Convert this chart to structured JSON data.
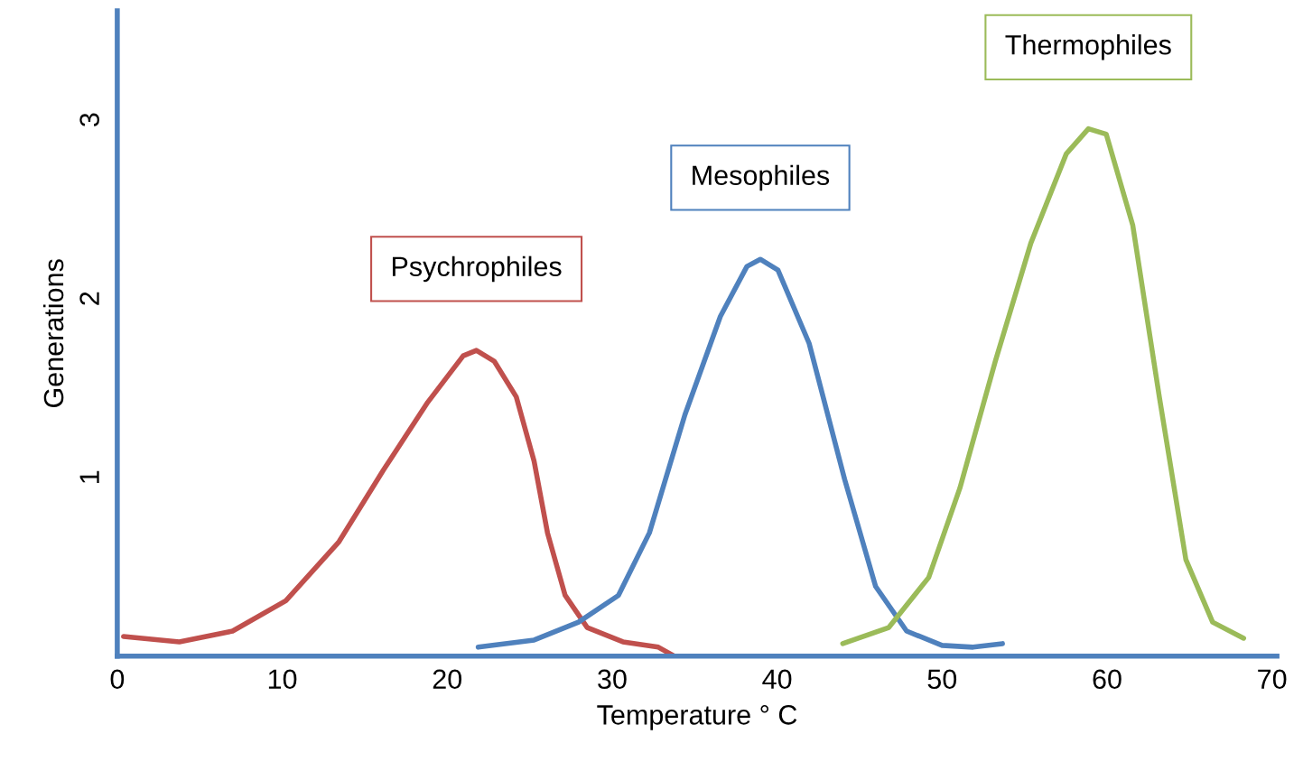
{
  "chart_data": {
    "type": "line",
    "xlabel": "Temperature ° C",
    "ylabel": "Generations",
    "xlim": [
      0,
      70.3
    ],
    "ylim": [
      0,
      3.61
    ],
    "xticks": [
      0,
      10,
      20,
      30,
      40,
      50,
      60,
      70
    ],
    "yticks": [
      1,
      2,
      3
    ],
    "grid": false,
    "legend": false,
    "marker": "none",
    "line_style": "solid",
    "series": [
      {
        "name": "Psychrophiles",
        "color": "#c0504d",
        "x": [
          0.38,
          3.76,
          6.99,
          10.22,
          13.44,
          16.13,
          18.82,
          20.97,
          21.77,
          22.85,
          24.19,
          25.27,
          26.08,
          27.15,
          28.49,
          30.65,
          32.8,
          33.76
        ],
        "values": [
          0.11,
          0.08,
          0.14,
          0.31,
          0.64,
          1.04,
          1.42,
          1.68,
          1.71,
          1.65,
          1.45,
          1.09,
          0.69,
          0.34,
          0.16,
          0.08,
          0.05,
          0.0
        ]
      },
      {
        "name": "Mesophiles",
        "color": "#4f81bd",
        "x": [
          21.88,
          25.27,
          27.96,
          30.38,
          32.26,
          34.41,
          36.56,
          38.17,
          38.98,
          40.05,
          41.94,
          44.09,
          45.97,
          47.85,
          50.0,
          51.88,
          53.66
        ],
        "values": [
          0.05,
          0.09,
          0.19,
          0.34,
          0.69,
          1.35,
          1.9,
          2.18,
          2.22,
          2.16,
          1.75,
          0.99,
          0.39,
          0.14,
          0.06,
          0.05,
          0.07
        ]
      },
      {
        "name": "Thermophiles",
        "color": "#9bbb59",
        "x": [
          43.98,
          46.77,
          49.19,
          51.08,
          53.23,
          55.38,
          57.53,
          58.87,
          59.95,
          61.56,
          63.17,
          64.78,
          66.4,
          68.28
        ],
        "values": [
          0.07,
          0.16,
          0.44,
          0.94,
          1.65,
          2.31,
          2.81,
          2.95,
          2.92,
          2.41,
          1.45,
          0.54,
          0.19,
          0.1
        ]
      }
    ]
  }
}
